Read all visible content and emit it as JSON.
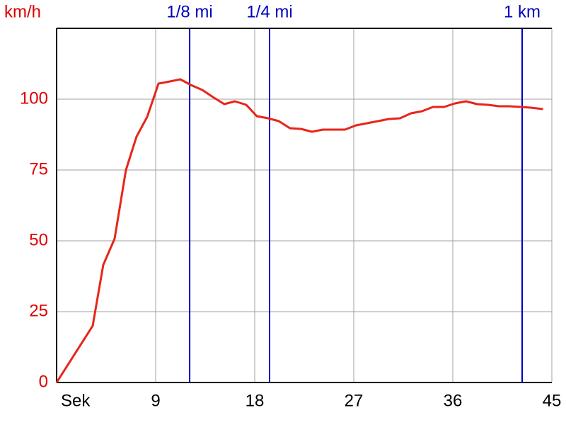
{
  "chart_data": {
    "type": "line",
    "y_label": "km/h",
    "x_label": "Sek",
    "xlim": [
      0,
      45
    ],
    "xticks": [
      9,
      18,
      27,
      36,
      45
    ],
    "ylim": [
      0,
      125
    ],
    "yticks": [
      0,
      25,
      50,
      75,
      100
    ],
    "grid": true,
    "axis_label_color": "#e00000",
    "x": [
      0,
      3.28,
      4.24,
      5.27,
      6.3,
      7.26,
      8.23,
      9.26,
      10.29,
      11.25,
      12.2,
      13.24,
      14.2,
      15.24,
      16.2,
      17.23,
      18.19,
      19.22,
      20.19,
      21.2,
      22.2,
      23.2,
      24.2,
      25.2,
      26.2,
      27.2,
      28.2,
      29.2,
      30.2,
      31.2,
      32.2,
      33.2,
      34.2,
      35.2,
      36.2,
      37.2,
      38.2,
      39.2,
      40.2,
      41.1,
      42.2,
      43.1,
      44.2
    ],
    "series": [
      {
        "name": "km/h",
        "color": "#e8251a",
        "values": [
          0,
          20,
          41.5,
          50.75,
          75,
          86.75,
          93.75,
          105.5,
          106.25,
          107,
          105,
          103.25,
          100.75,
          98.25,
          99.25,
          98,
          94,
          93.25,
          92.25,
          89.75,
          89.5,
          88.5,
          89.25,
          89.25,
          89.25,
          90.75,
          91.5,
          92.25,
          93,
          93.25,
          95,
          95.75,
          97.25,
          97.25,
          98.5,
          99.25,
          98.25,
          98,
          97.5,
          97.5,
          97.25,
          97,
          96.5
        ]
      }
    ],
    "markers": [
      {
        "label": "1/8 mi",
        "x": 12.09
      },
      {
        "label": "1/4 mi",
        "x": 19.35
      },
      {
        "label": "1 km",
        "x": 42.3
      }
    ],
    "marker_color": "#0000c0"
  }
}
